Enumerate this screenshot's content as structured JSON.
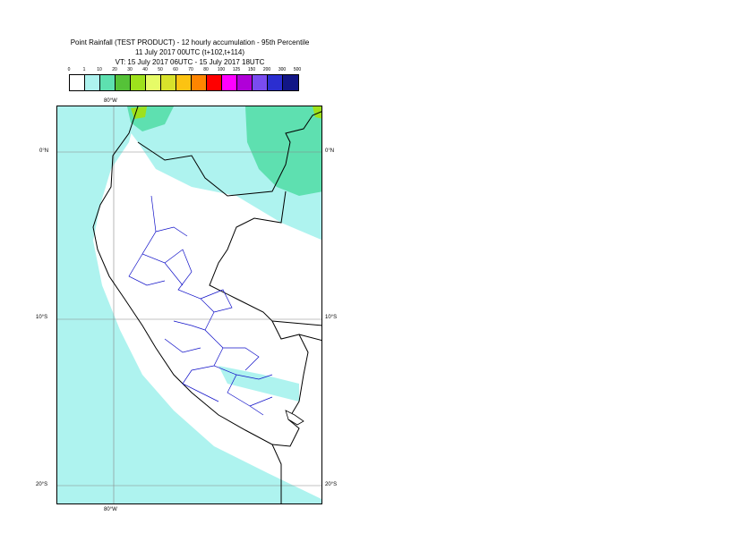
{
  "title": {
    "line1": "Point Rainfall (TEST PRODUCT) - 12 hourly accumulation - 95th Percentile",
    "line2": "11 July 2017 00UTC (t+102,t+114)",
    "line3": "VT: 15 July 2017 06UTC - 15 July 2017 18UTC"
  },
  "legend": {
    "labels": [
      "0",
      "1",
      "10",
      "20",
      "30",
      "40",
      "50",
      "60",
      "70",
      "80",
      "100",
      "125",
      "150",
      "200",
      "300",
      "500"
    ],
    "colors": [
      "#ffffff",
      "#aef3ef",
      "#5ee0b0",
      "#55c238",
      "#9ee11c",
      "#e6fb67",
      "#d8e22b",
      "#fcc312",
      "#ff8500",
      "#ff0000",
      "#ff00ff",
      "#b000d8",
      "#7a4cf0",
      "#2b2ed0",
      "#121686"
    ]
  },
  "axes": {
    "top_lon": "80°W",
    "bottom_lon": "80°W",
    "right_lat": [
      "0°N",
      "10°S",
      "20°S"
    ],
    "left_lat": [
      "0°N",
      "10°S",
      "20°S"
    ]
  }
}
